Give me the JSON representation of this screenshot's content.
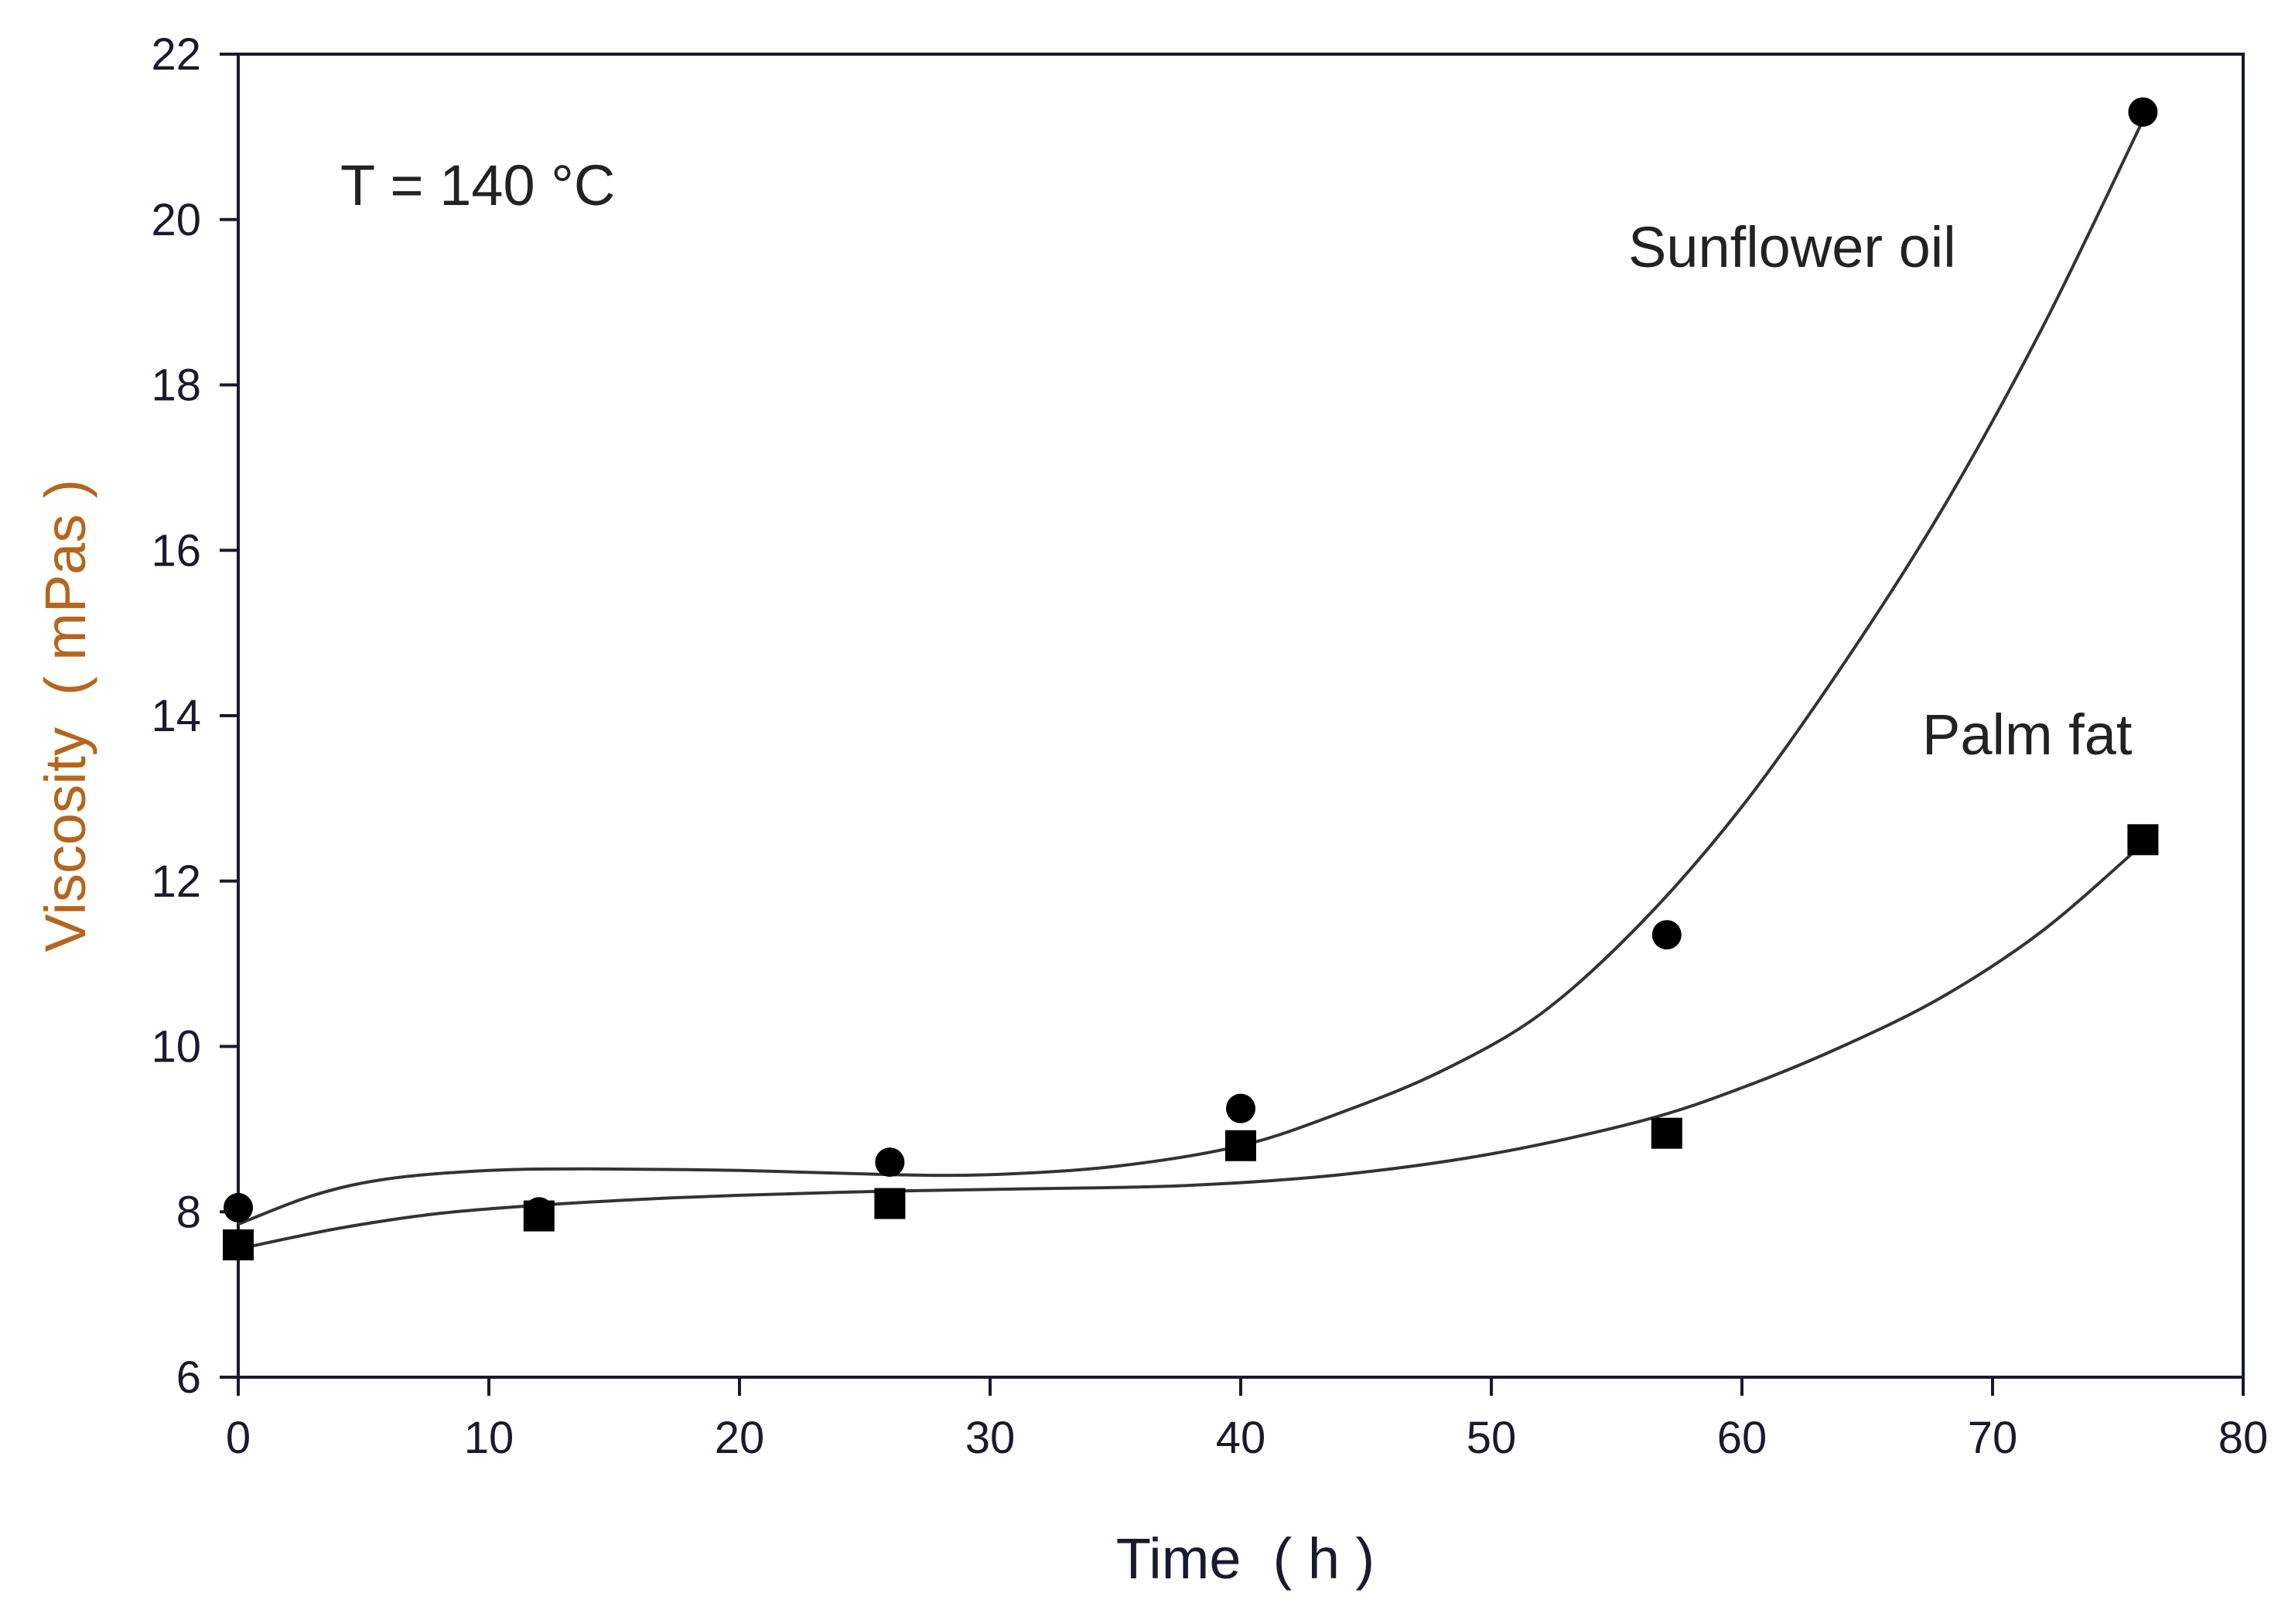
{
  "chart_data": {
    "type": "scatter",
    "xlabel": "Time  ( h )",
    "ylabel": "Viscosity  ( mPas )",
    "xlim": [
      0,
      80
    ],
    "ylim": [
      6,
      22
    ],
    "xticks": [
      0,
      10,
      20,
      30,
      40,
      50,
      60,
      70,
      80
    ],
    "yticks": [
      6,
      8,
      10,
      12,
      14,
      16,
      18,
      20,
      22
    ],
    "grid": false,
    "annotation": "T = 140 °C",
    "series": [
      {
        "name": "Sunflower oil",
        "marker": "circle",
        "x": [
          0,
          12,
          26,
          40,
          57,
          76
        ],
        "y": [
          8.05,
          8.0,
          8.6,
          9.25,
          11.35,
          21.3
        ],
        "fit_curve": [
          [
            0,
            7.85
          ],
          [
            3,
            8.2
          ],
          [
            6,
            8.4
          ],
          [
            10,
            8.5
          ],
          [
            14,
            8.52
          ],
          [
            20,
            8.5
          ],
          [
            26,
            8.45
          ],
          [
            30,
            8.45
          ],
          [
            35,
            8.55
          ],
          [
            40,
            8.8
          ],
          [
            44,
            9.2
          ],
          [
            48,
            9.7
          ],
          [
            52,
            10.4
          ],
          [
            56,
            11.5
          ],
          [
            60,
            12.9
          ],
          [
            64,
            14.6
          ],
          [
            68,
            16.5
          ],
          [
            72,
            18.7
          ],
          [
            76,
            21.2
          ]
        ]
      },
      {
        "name": "Palm fat",
        "marker": "square",
        "x": [
          0,
          12,
          26,
          40,
          57,
          76
        ],
        "y": [
          7.6,
          7.95,
          8.1,
          8.8,
          8.95,
          12.5
        ],
        "fit_curve": [
          [
            0,
            7.55
          ],
          [
            4,
            7.8
          ],
          [
            8,
            7.98
          ],
          [
            12,
            8.08
          ],
          [
            16,
            8.15
          ],
          [
            20,
            8.2
          ],
          [
            26,
            8.25
          ],
          [
            32,
            8.28
          ],
          [
            38,
            8.32
          ],
          [
            44,
            8.45
          ],
          [
            50,
            8.7
          ],
          [
            56,
            9.1
          ],
          [
            60,
            9.5
          ],
          [
            64,
            10.0
          ],
          [
            68,
            10.6
          ],
          [
            72,
            11.4
          ],
          [
            76,
            12.45
          ]
        ]
      }
    ],
    "colors": {
      "axis": "#1a1a2e",
      "marker": "#000000",
      "curve": "#333333",
      "ylabel": "#b5651d"
    }
  }
}
